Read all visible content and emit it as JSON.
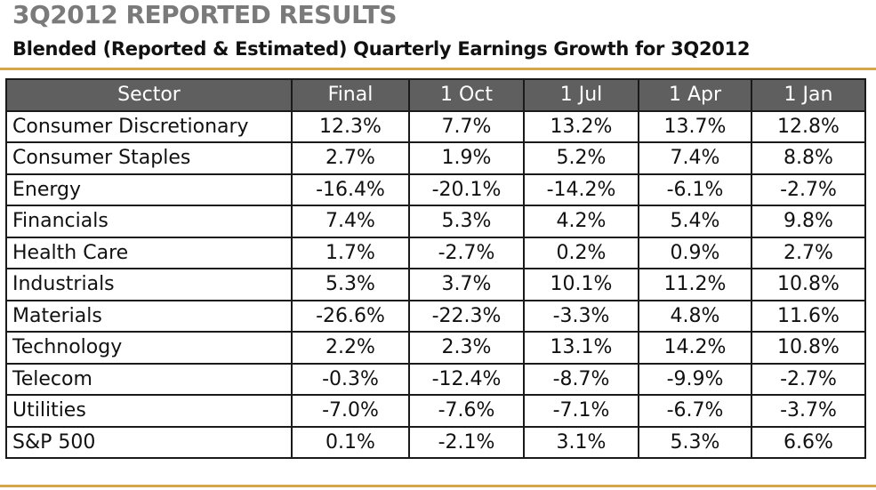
{
  "header": {
    "title": "3Q2012 REPORTED RESULTS",
    "subtitle": "Blended (Reported & Estimated) Quarterly Earnings Growth for 3Q2012"
  },
  "colors": {
    "title": "#7a7a7a",
    "rule": "#d4a64a",
    "header_bg": "#5f5f5f",
    "header_text": "#ffffff",
    "grid": "#1a1a1a"
  },
  "chart_data": {
    "type": "table",
    "columns": [
      "Sector",
      "Final",
      "1 Oct",
      "1 Jul",
      "1 Apr",
      "1 Jan"
    ],
    "rows": [
      {
        "sector": "Consumer Discretionary",
        "values": [
          "12.3%",
          "7.7%",
          "13.2%",
          "13.7%",
          "12.8%"
        ]
      },
      {
        "sector": "Consumer Staples",
        "values": [
          "2.7%",
          "1.9%",
          "5.2%",
          "7.4%",
          "8.8%"
        ]
      },
      {
        "sector": "Energy",
        "values": [
          "-16.4%",
          "-20.1%",
          "-14.2%",
          "-6.1%",
          "-2.7%"
        ]
      },
      {
        "sector": "Financials",
        "values": [
          "7.4%",
          "5.3%",
          "4.2%",
          "5.4%",
          "9.8%"
        ]
      },
      {
        "sector": "Health Care",
        "values": [
          "1.7%",
          "-2.7%",
          "0.2%",
          "0.9%",
          "2.7%"
        ]
      },
      {
        "sector": "Industrials",
        "values": [
          "5.3%",
          "3.7%",
          "10.1%",
          "11.2%",
          "10.8%"
        ]
      },
      {
        "sector": "Materials",
        "values": [
          "-26.6%",
          "-22.3%",
          "-3.3%",
          "4.8%",
          "11.6%"
        ]
      },
      {
        "sector": "Technology",
        "values": [
          "2.2%",
          "2.3%",
          "13.1%",
          "14.2%",
          "10.8%"
        ]
      },
      {
        "sector": "Telecom",
        "values": [
          "-0.3%",
          "-12.4%",
          "-8.7%",
          "-9.9%",
          "-2.7%"
        ]
      },
      {
        "sector": "Utilities",
        "values": [
          "-7.0%",
          "-7.6%",
          "-7.1%",
          "-6.7%",
          "-3.7%"
        ]
      },
      {
        "sector": "S&P 500",
        "values": [
          "0.1%",
          "-2.1%",
          "3.1%",
          "5.3%",
          "6.6%"
        ]
      }
    ]
  }
}
